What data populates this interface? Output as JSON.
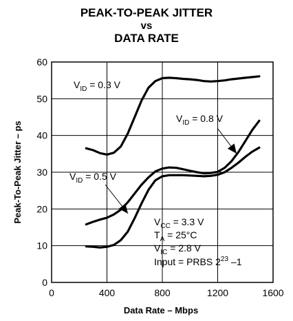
{
  "chart_data": {
    "type": "line",
    "title_lines": [
      "PEAK-TO-PEAK JITTER",
      "vs",
      "DATA RATE"
    ],
    "xlabel": "Data Rate – Mbps",
    "ylabel": "Peak-To-Peak Jitter – ps",
    "xlim": [
      0,
      1600
    ],
    "ylim": [
      0,
      60
    ],
    "xticks": [
      0,
      400,
      800,
      1200,
      1600
    ],
    "yticks": [
      0,
      10,
      20,
      30,
      40,
      50,
      60
    ],
    "grid": true,
    "series": [
      {
        "label_main": "V",
        "label_sub": "ID",
        "label_value": " = 0.3 V",
        "x": [
          250,
          300,
          350,
          400,
          450,
          500,
          550,
          600,
          650,
          700,
          750,
          800,
          850,
          900,
          950,
          1000,
          1050,
          1100,
          1150,
          1200,
          1250,
          1300,
          1350,
          1400,
          1450,
          1500
        ],
        "y": [
          36.5,
          36.0,
          35.2,
          34.8,
          35.3,
          37.0,
          40.5,
          45.0,
          49.5,
          53.0,
          54.8,
          55.6,
          55.7,
          55.6,
          55.4,
          55.3,
          55.1,
          54.8,
          54.7,
          54.8,
          55.0,
          55.3,
          55.5,
          55.7,
          55.9,
          56.1
        ]
      },
      {
        "label_main": "V",
        "label_sub": "ID",
        "label_value": " = 0.8 V",
        "x": [
          250,
          300,
          350,
          400,
          450,
          500,
          550,
          600,
          650,
          700,
          750,
          800,
          850,
          900,
          950,
          1000,
          1050,
          1100,
          1150,
          1200,
          1250,
          1300,
          1350,
          1400,
          1450,
          1500
        ],
        "y": [
          15.8,
          16.5,
          17.1,
          17.6,
          18.5,
          19.8,
          21.8,
          24.2,
          26.6,
          28.6,
          30.2,
          31.0,
          31.3,
          31.2,
          30.8,
          30.4,
          30.0,
          29.7,
          29.8,
          30.1,
          31.2,
          33.0,
          35.5,
          38.5,
          41.5,
          44.0
        ]
      },
      {
        "label_main": "V",
        "label_sub": "ID",
        "label_value": " = 0.5 V",
        "x": [
          250,
          300,
          350,
          400,
          450,
          500,
          550,
          600,
          650,
          700,
          750,
          800,
          850,
          900,
          950,
          1000,
          1050,
          1100,
          1150,
          1200,
          1250,
          1300,
          1350,
          1400,
          1450,
          1500
        ],
        "y": [
          9.8,
          9.7,
          9.5,
          9.7,
          10.2,
          11.5,
          13.8,
          17.5,
          21.5,
          25.2,
          27.8,
          28.9,
          29.2,
          29.2,
          29.2,
          29.1,
          29.0,
          28.9,
          29.0,
          29.3,
          30.0,
          31.2,
          32.6,
          34.2,
          35.6,
          36.7
        ]
      }
    ],
    "conditions": [
      {
        "main": "V",
        "sub": "CC",
        "sup": "",
        "rest": " = 3.3 V"
      },
      {
        "main": "T",
        "sub": "A",
        "sup": "",
        "rest": " = 25°C"
      },
      {
        "main": "V",
        "sub": "IC",
        "sup": "",
        "rest": " = 2.8 V"
      },
      {
        "main": "Input = PRBS 2",
        "sub": "",
        "sup": "23",
        "rest": " –1"
      }
    ]
  }
}
